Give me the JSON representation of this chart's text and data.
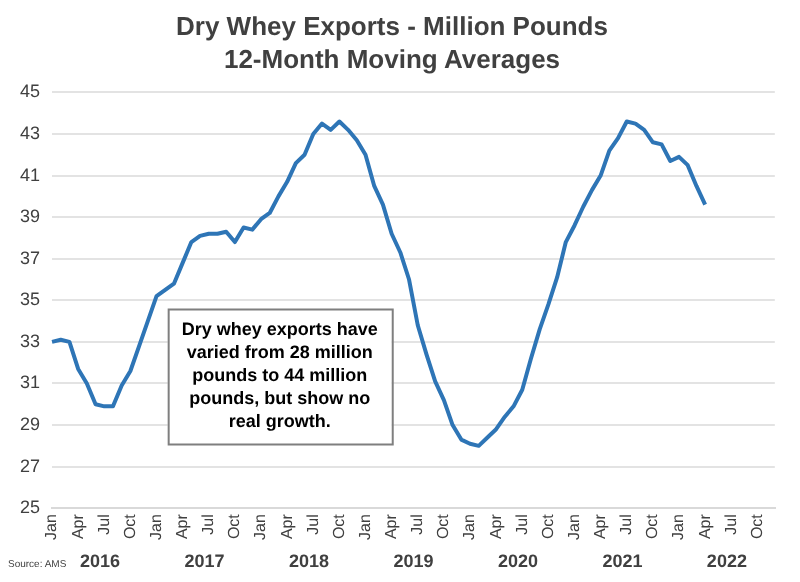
{
  "chart_data": {
    "type": "line",
    "title": "Dry Whey Exports - Million Pounds",
    "subtitle": "12-Month Moving Averages",
    "categories": [
      "Jan",
      null,
      null,
      "Apr",
      null,
      null,
      "Jul",
      null,
      null,
      "Oct",
      null,
      null,
      "Jan",
      null,
      null,
      "Apr",
      null,
      null,
      "Jul",
      null,
      null,
      "Oct",
      null,
      null,
      "Jan",
      null,
      null,
      "Apr",
      null,
      null,
      "Jul",
      null,
      null,
      "Oct",
      null,
      null,
      "Jan",
      null,
      null,
      "Apr",
      null,
      null,
      "Jul",
      null,
      null,
      "Oct",
      null,
      null,
      "Jan",
      null,
      null,
      "Apr",
      null,
      null,
      "Jul",
      null,
      null,
      "Oct",
      null,
      null,
      "Jan",
      null,
      null,
      "Apr",
      null,
      null,
      "Jul",
      null,
      null,
      "Oct",
      null,
      null,
      "Jan",
      null,
      null,
      "Apr",
      null,
      null,
      "Jul",
      null,
      null,
      "Oct",
      null,
      null
    ],
    "series": [
      {
        "color": "#2e75b6",
        "values": [
          33.0,
          33.1,
          33.0,
          31.7,
          31.0,
          30.0,
          29.9,
          29.9,
          30.9,
          31.6,
          32.8,
          34.0,
          35.2,
          35.5,
          35.8,
          36.8,
          37.8,
          38.1,
          38.2,
          38.2,
          38.3,
          37.8,
          38.5,
          38.4,
          38.9,
          39.2,
          40.0,
          40.7,
          41.6,
          42.0,
          43.0,
          43.5,
          43.2,
          43.6,
          43.2,
          42.7,
          42.0,
          40.5,
          39.6,
          38.2,
          37.3,
          36.0,
          33.8,
          32.4,
          31.1,
          30.2,
          29.0,
          28.3,
          28.1,
          28.0,
          28.4,
          28.8,
          29.4,
          29.9,
          30.7,
          32.2,
          33.6,
          34.8,
          36.1,
          37.8,
          38.6,
          39.5,
          40.3,
          41.0,
          42.2,
          42.8,
          43.6,
          43.5,
          43.2,
          42.6,
          42.5,
          41.7,
          41.9,
          41.5,
          40.5,
          39.6,
          null,
          null,
          null,
          null,
          null,
          null,
          null,
          null
        ]
      }
    ],
    "ylim": [
      25,
      45
    ],
    "yticks": [
      25,
      27,
      29,
      31,
      33,
      35,
      37,
      39,
      41,
      43,
      45
    ],
    "grid": "y",
    "marker": "none",
    "line_style": "solid",
    "annotations": [
      "Dry whey exports have varied from 28 million pounds to 44 million pounds, but show no real growth.",
      "Source: AMS",
      "2016",
      "2017",
      "2018",
      "2019",
      "2020",
      "2021",
      "2022"
    ]
  }
}
